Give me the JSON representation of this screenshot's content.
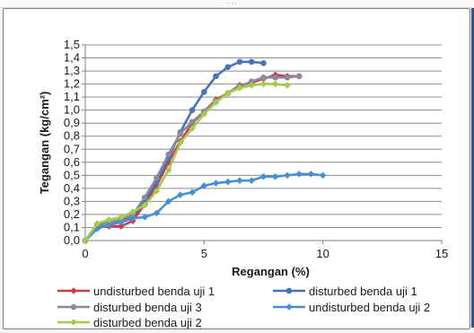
{
  "window": {
    "grip_label": "....",
    "right_edge_color": "#2b5797"
  },
  "chart_data": {
    "type": "line",
    "xlabel": "Regangan (%)",
    "ylabel": "Tegangan (kg/cm²)",
    "xlim": [
      0,
      15
    ],
    "ylim": [
      0,
      1.5
    ],
    "x_ticks": [
      "0",
      "5",
      "10",
      "15"
    ],
    "y_ticks": [
      "0,0",
      "0,1",
      "0,2",
      "0,3",
      "0,4",
      "0,5",
      "0,6",
      "0,7",
      "0,8",
      "0,9",
      "1,0",
      "1,1",
      "1,2",
      "1,3",
      "1,4",
      "1,5"
    ],
    "grid": "horizontal",
    "legend_position": "bottom",
    "series": [
      {
        "name": "undisturbed benda uji 1",
        "color": "#cf3a4a",
        "marker": "diamond",
        "x": [
          0,
          0.5,
          1.0,
          1.5,
          2.0,
          2.5,
          3.0,
          3.5,
          4.0,
          4.5,
          5.0,
          5.5,
          6.0,
          6.5,
          7.0,
          7.5,
          8.0,
          8.5,
          9.0
        ],
        "y": [
          0,
          0.1,
          0.11,
          0.11,
          0.15,
          0.28,
          0.42,
          0.6,
          0.76,
          0.9,
          0.99,
          1.08,
          1.13,
          1.19,
          1.21,
          1.24,
          1.27,
          1.26,
          1.26
        ]
      },
      {
        "name": "disturbed benda uji 1",
        "color": "#4a72b8",
        "marker": "circle",
        "x": [
          0,
          0.5,
          1.0,
          1.5,
          2.0,
          2.5,
          3.0,
          3.5,
          4.0,
          4.5,
          5.0,
          5.5,
          6.0,
          6.5,
          7.0,
          7.5
        ],
        "y": [
          0,
          0.11,
          0.14,
          0.15,
          0.18,
          0.3,
          0.45,
          0.63,
          0.83,
          1.0,
          1.14,
          1.26,
          1.33,
          1.37,
          1.37,
          1.36
        ]
      },
      {
        "name": "disturbed benda uji 3",
        "color": "#8a8a9a",
        "marker": "circle",
        "x": [
          0,
          0.5,
          1.0,
          1.5,
          2.0,
          2.5,
          3.0,
          3.5,
          4.0,
          4.5,
          5.0,
          5.5,
          6.0,
          6.5,
          7.0,
          7.5,
          8.0,
          8.5,
          9.0
        ],
        "y": [
          0,
          0.12,
          0.14,
          0.16,
          0.2,
          0.33,
          0.48,
          0.66,
          0.82,
          0.91,
          0.99,
          1.07,
          1.13,
          1.18,
          1.22,
          1.25,
          1.25,
          1.25,
          1.26
        ]
      },
      {
        "name": "undisturbed benda uji 2",
        "color": "#4a8fd4",
        "marker": "diamond",
        "x": [
          0,
          0.5,
          1.0,
          1.5,
          2.0,
          2.5,
          3.0,
          3.5,
          4.0,
          4.5,
          5.0,
          5.5,
          6.0,
          6.5,
          7.0,
          7.5,
          8.0,
          8.5,
          9.0,
          9.5,
          10.0
        ],
        "y": [
          0,
          0.09,
          0.12,
          0.14,
          0.17,
          0.18,
          0.21,
          0.3,
          0.35,
          0.37,
          0.42,
          0.44,
          0.45,
          0.46,
          0.46,
          0.49,
          0.49,
          0.5,
          0.51,
          0.51,
          0.5
        ]
      },
      {
        "name": "disturbed benda uji 2",
        "color": "#a3cc4a",
        "marker": "diamond",
        "x": [
          0,
          0.5,
          1.0,
          1.5,
          2.0,
          2.5,
          3.0,
          3.5,
          4.0,
          4.5,
          5.0,
          5.5,
          6.0,
          6.5,
          7.0,
          7.5,
          8.0,
          8.5
        ],
        "y": [
          0,
          0.13,
          0.16,
          0.18,
          0.22,
          0.27,
          0.38,
          0.54,
          0.75,
          0.86,
          0.97,
          1.06,
          1.13,
          1.17,
          1.19,
          1.2,
          1.2,
          1.19
        ]
      }
    ]
  }
}
